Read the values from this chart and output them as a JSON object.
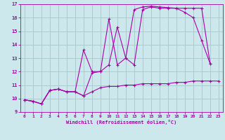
{
  "xlabel": "Windchill (Refroidissement éolien,°C)",
  "background_color": "#cce8ec",
  "grid_color": "#aacccc",
  "line_color": "#aa00aa",
  "xlim": [
    -0.5,
    23.5
  ],
  "ylim": [
    9,
    17
  ],
  "xticks": [
    0,
    1,
    2,
    3,
    4,
    5,
    6,
    7,
    8,
    9,
    10,
    11,
    12,
    13,
    14,
    15,
    16,
    17,
    18,
    19,
    20,
    21,
    22,
    23
  ],
  "yticks": [
    9,
    10,
    11,
    12,
    13,
    14,
    15,
    16,
    17
  ],
  "series": [
    {
      "x": [
        0,
        1,
        2,
        3,
        4,
        5,
        6,
        7,
        8,
        9,
        10,
        11,
        12,
        13,
        14,
        15,
        16,
        17,
        18,
        19,
        20,
        21,
        22,
        23
      ],
      "y": [
        9.9,
        9.8,
        9.6,
        10.6,
        10.7,
        10.5,
        10.5,
        10.2,
        10.5,
        10.8,
        10.9,
        10.9,
        11.0,
        11.0,
        11.1,
        11.1,
        11.1,
        11.1,
        11.2,
        11.2,
        11.3,
        11.3,
        11.3,
        11.3
      ]
    },
    {
      "x": [
        0,
        1,
        2,
        3,
        4,
        5,
        6,
        7,
        8,
        9,
        10,
        11,
        12,
        13,
        14,
        15,
        16,
        17,
        18,
        19,
        20,
        21,
        22,
        23
      ],
      "y": [
        9.9,
        9.8,
        9.6,
        10.6,
        10.7,
        10.5,
        10.5,
        13.6,
        12.0,
        12.0,
        15.9,
        12.5,
        13.0,
        16.6,
        16.8,
        16.85,
        16.8,
        16.75,
        16.7,
        16.4,
        16.0,
        14.3,
        12.6,
        null
      ]
    },
    {
      "x": [
        0,
        1,
        2,
        3,
        4,
        5,
        6,
        7,
        8,
        9,
        10,
        11,
        12,
        13,
        14,
        15,
        16,
        17,
        18,
        19,
        20,
        21,
        22,
        23
      ],
      "y": [
        9.9,
        9.8,
        9.6,
        10.6,
        10.7,
        10.5,
        10.5,
        10.2,
        11.9,
        12.0,
        12.5,
        15.3,
        13.0,
        12.5,
        16.6,
        16.8,
        16.7,
        16.7,
        16.7,
        16.7,
        16.7,
        16.7,
        12.6,
        null
      ]
    }
  ]
}
